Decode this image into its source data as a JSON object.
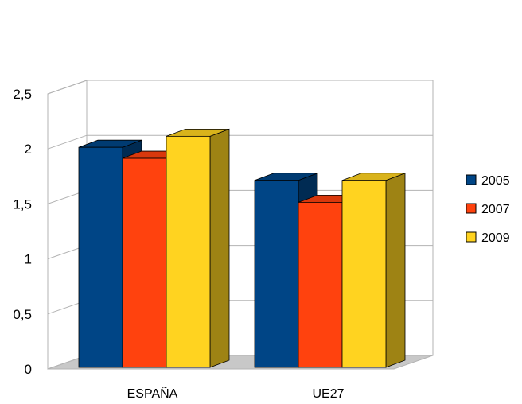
{
  "chart_data": {
    "type": "bar",
    "style": "3d-clustered-column",
    "categories": [
      "ESPAÑA",
      "UE27"
    ],
    "series": [
      {
        "name": "2005",
        "values": [
          2.0,
          1.7
        ],
        "color": "#004586"
      },
      {
        "name": "2007",
        "values": [
          1.9,
          1.5
        ],
        "color": "#ff420e"
      },
      {
        "name": "2009",
        "values": [
          2.1,
          1.7
        ],
        "color": "#ffd320"
      }
    ],
    "ylim": [
      0,
      2.5
    ],
    "yticks": [
      0,
      0.5,
      1,
      1.5,
      2,
      2.5
    ],
    "ytick_labels": [
      "0",
      "0,5",
      "1",
      "1,5",
      "2",
      "2,5"
    ],
    "grid": true,
    "legend_position": "right",
    "title": "",
    "xlabel": "",
    "ylabel": ""
  }
}
